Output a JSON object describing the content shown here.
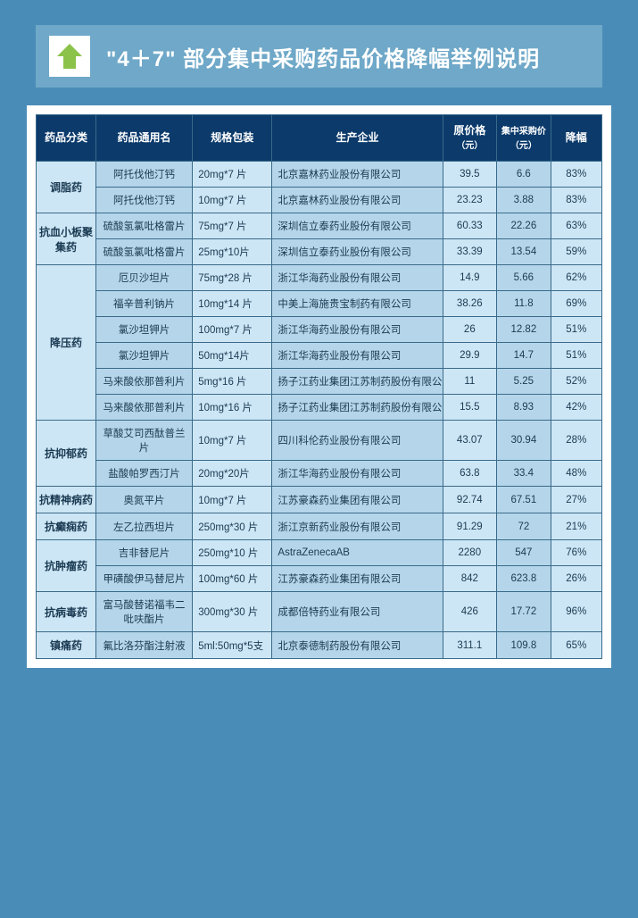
{
  "banner": {
    "title": "\"4＋7\" 部分集中采购药品价格降幅举例说明"
  },
  "columns": {
    "cat": "药品分类",
    "name": "药品通用名",
    "spec": "规格包装",
    "mfr": "生产企业",
    "orig": "原价格",
    "orig_unit": "（元）",
    "proc": "集中采购价",
    "proc_unit": "（元）",
    "pct": "降幅"
  },
  "categories": [
    {
      "name": "调脂药",
      "rows": [
        {
          "drug": "阿托伐他汀钙",
          "spec": "20mg*7 片",
          "mfr": "北京嘉林药业股份有限公司",
          "orig": "39.5",
          "proc": "6.6",
          "pct": "83%"
        },
        {
          "drug": "阿托伐他汀钙",
          "spec": "10mg*7 片",
          "mfr": "北京嘉林药业股份有限公司",
          "orig": "23.23",
          "proc": "3.88",
          "pct": "83%"
        }
      ]
    },
    {
      "name": "抗血小板聚集药",
      "rows": [
        {
          "drug": "硫酸氢氯吡格雷片",
          "spec": "75mg*7 片",
          "mfr": "深圳信立泰药业股份有限公司",
          "orig": "60.33",
          "proc": "22.26",
          "pct": "63%"
        },
        {
          "drug": "硫酸氢氯吡格雷片",
          "spec": "25mg*10片",
          "mfr": "深圳信立泰药业股份有限公司",
          "orig": "33.39",
          "proc": "13.54",
          "pct": "59%"
        }
      ]
    },
    {
      "name": "降压药",
      "rows": [
        {
          "drug": "厄贝沙坦片",
          "spec": "75mg*28 片",
          "mfr": "浙江华海药业股份有限公司",
          "orig": "14.9",
          "proc": "5.66",
          "pct": "62%"
        },
        {
          "drug": "福辛普利钠片",
          "spec": "10mg*14 片",
          "mfr": "中美上海施贵宝制药有限公司",
          "orig": "38.26",
          "proc": "11.8",
          "pct": "69%"
        },
        {
          "drug": "氯沙坦钾片",
          "spec": "100mg*7 片",
          "mfr": "浙江华海药业股份有限公司",
          "orig": "26",
          "proc": "12.82",
          "pct": "51%"
        },
        {
          "drug": "氯沙坦钾片",
          "spec": "50mg*14片",
          "mfr": "浙江华海药业股份有限公司",
          "orig": "29.9",
          "proc": "14.7",
          "pct": "51%"
        },
        {
          "drug": "马来酸依那普利片",
          "spec": "5mg*16 片",
          "mfr": "扬子江药业集团江苏制药股份有限公司",
          "orig": "11",
          "proc": "5.25",
          "pct": "52%"
        },
        {
          "drug": "马来酸依那普利片",
          "spec": "10mg*16 片",
          "mfr": "扬子江药业集团江苏制药股份有限公司",
          "orig": "15.5",
          "proc": "8.93",
          "pct": "42%"
        }
      ]
    },
    {
      "name": "抗抑郁药",
      "rows": [
        {
          "drug": "草酸艾司西酞普兰片",
          "spec": "10mg*7 片",
          "mfr": "四川科伦药业股份有限公司",
          "orig": "43.07",
          "proc": "30.94",
          "pct": "28%"
        },
        {
          "drug": "盐酸帕罗西汀片",
          "spec": "20mg*20片",
          "mfr": "浙江华海药业股份有限公司",
          "orig": "63.8",
          "proc": "33.4",
          "pct": "48%"
        }
      ]
    },
    {
      "name": "抗精神病药",
      "rows": [
        {
          "drug": "奥氮平片",
          "spec": "10mg*7 片",
          "mfr": "江苏豪森药业集团有限公司",
          "orig": "92.74",
          "proc": "67.51",
          "pct": "27%"
        }
      ]
    },
    {
      "name": "抗癫痫药",
      "rows": [
        {
          "drug": "左乙拉西坦片",
          "spec": "250mg*30 片",
          "mfr": "浙江京新药业股份有限公司",
          "orig": "91.29",
          "proc": "72",
          "pct": "21%"
        }
      ]
    },
    {
      "name": "抗肿瘤药",
      "rows": [
        {
          "drug": "吉非替尼片",
          "spec": "250mg*10 片",
          "mfr": "AstraZenecaAB",
          "orig": "2280",
          "proc": "547",
          "pct": "76%"
        },
        {
          "drug": "甲磺酸伊马替尼片",
          "spec": "100mg*60 片",
          "mfr": "江苏豪森药业集团有限公司",
          "orig": "842",
          "proc": "623.8",
          "pct": "26%"
        }
      ]
    },
    {
      "name": "抗病毒药",
      "rows": [
        {
          "drug": "富马酸替诺福韦二吡呋酯片",
          "spec": "300mg*30 片",
          "mfr": "成都倍特药业有限公司",
          "orig": "426",
          "proc": "17.72",
          "pct": "96%"
        }
      ]
    },
    {
      "name": "镇痛药",
      "rows": [
        {
          "drug": "氟比洛芬酯注射液",
          "spec": "5ml:50mg*5支",
          "mfr": "北京泰德制药股份有限公司",
          "orig": "311.1",
          "proc": "109.8",
          "pct": "65%"
        }
      ]
    }
  ]
}
